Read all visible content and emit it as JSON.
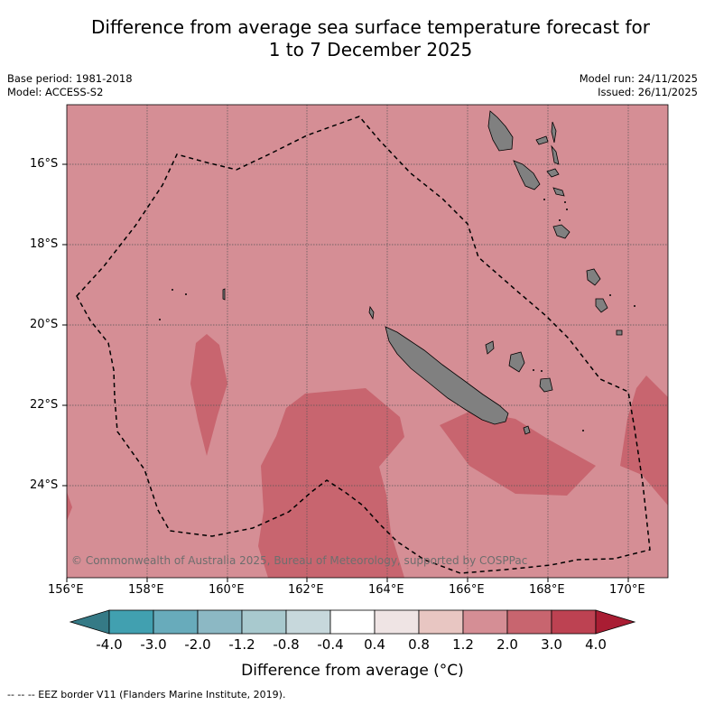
{
  "title_line1": "Difference from average sea surface temperature forecast for",
  "title_line2": "1 to 7 December 2025",
  "base_period": "Base period: 1981-2018",
  "model": "Model: ACCESS-S2",
  "model_run": "Model run: 24/11/2025",
  "issued": "Issued: 26/11/2025",
  "copyright": "© Commonwealth of Australia 2025, Bureau of Meteorology, supported by COSPPac",
  "colorbar_title": "Difference from average (°C)",
  "legend_note": "--  --  -- EEZ border V11 (Flanders Marine Institute, 2019).",
  "x_ticks": [
    "156°E",
    "158°E",
    "160°E",
    "162°E",
    "164°E",
    "166°E",
    "168°E",
    "170°E"
  ],
  "y_ticks": [
    "16°S",
    "18°S",
    "20°S",
    "22°S",
    "24°S"
  ],
  "colorbar_labels": [
    "-4.0",
    "-3.0",
    "-2.0",
    "-1.2",
    "-0.8",
    "-0.4",
    "0.4",
    "0.8",
    "1.2",
    "2.0",
    "3.0",
    "4.0"
  ],
  "colors": {
    "under": "#357a86",
    "bins": [
      "#41a0b0",
      "#68abbb",
      "#8cb8c4",
      "#a8c9ce",
      "#c7d8dc",
      "#ffffff",
      "#efe4e4",
      "#e8c6c2",
      "#d58e95",
      "#c8656f",
      "#bd4252"
    ],
    "over": "#a91d33",
    "ocean_main": "#d58e95",
    "ocean_warm": "#c8656f",
    "land": "#808080"
  },
  "map": {
    "lon_range": [
      156,
      171
    ],
    "lat_range": [
      -26.1,
      -14.6
    ]
  }
}
